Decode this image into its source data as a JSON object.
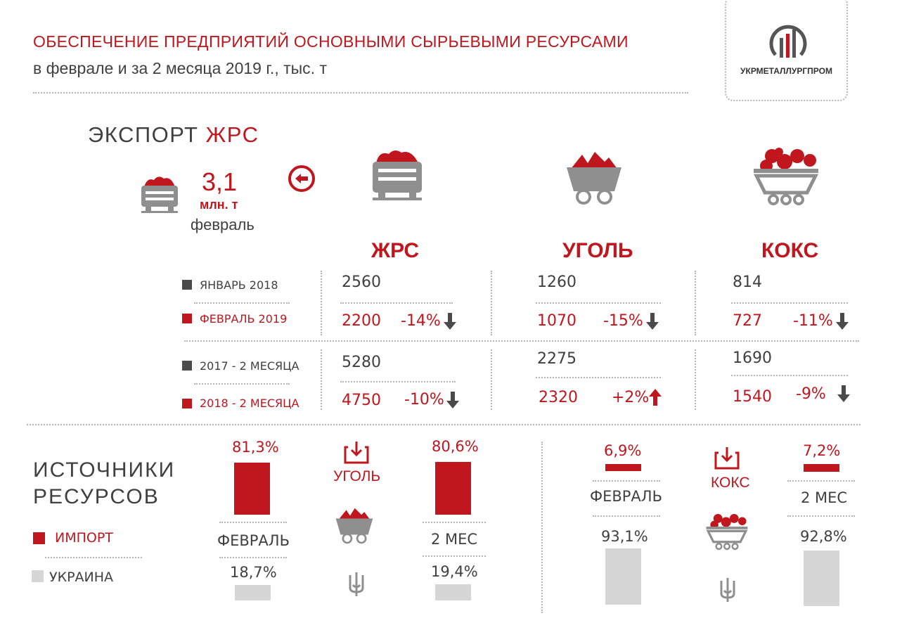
{
  "colors": {
    "red": "#c0161e",
    "dark": "#4a4a4a",
    "grey": "#d6d6d6",
    "mid_grey": "#8f8f8f"
  },
  "header": {
    "title": "ОБЕСПЕЧЕНИЕ ПРЕДПРИЯТИЙ ОСНОВНЫМИ СЫРЬЕВЫМИ РЕСУРСАМИ",
    "subtitle": "в феврале и за 2 месяца 2019 г.,  тыс. т",
    "logo_text": "УКРМЕТАЛЛУРГПРОМ"
  },
  "export": {
    "title_part1": "ЭКСПОРТ",
    "title_part2": "ЖРС",
    "value": "3,1",
    "unit": "млн. т",
    "period": "февраль"
  },
  "resources": {
    "columns": [
      "ЖРС",
      "УГОЛЬ",
      "КОКС"
    ],
    "rows": [
      "ЯНВАРЬ 2018",
      "ФЕВРАЛЬ 2019",
      "2017 - 2 МЕСЯЦА",
      "2018 - 2 МЕСЯЦА"
    ]
  },
  "chart_data": [
    {
      "type": "table",
      "columns": [
        "ЖРС",
        "УГОЛЬ",
        "КОКС"
      ],
      "rows": [
        {
          "label": "ЯНВАРЬ 2018",
          "values": [
            "2560",
            "1260",
            "814"
          ]
        },
        {
          "label": "ФЕВРАЛЬ 2019",
          "values": [
            "2200",
            "1070",
            "727"
          ],
          "changes": [
            "-14%",
            "-15%",
            "-11%"
          ]
        },
        {
          "label": "2017 - 2 МЕСЯЦА",
          "values": [
            "5280",
            "2275",
            "1690"
          ]
        },
        {
          "label": "2018 - 2 МЕСЯЦА",
          "values": [
            "4750",
            "2320",
            "1540"
          ],
          "changes": [
            "-10%",
            "+2%",
            "-9%"
          ]
        }
      ]
    },
    {
      "type": "bar",
      "title": "ИСТОЧНИКИ РЕСУРСОВ",
      "legend": [
        "ИМПОРТ",
        "УКРАИНА"
      ],
      "groups": [
        {
          "name": "УГОЛЬ",
          "periods": [
            {
              "label": "ФЕВРАЛЬ",
              "import": 81.3,
              "ukraine": 18.7,
              "import_label": "81,3%",
              "ukraine_label": "18,7%"
            },
            {
              "label": "2 МЕС",
              "import": 80.6,
              "ukraine": 19.4,
              "import_label": "80,6%",
              "ukraine_label": "19,4%"
            }
          ]
        },
        {
          "name": "КОКС",
          "periods": [
            {
              "label": "ФЕВРАЛЬ",
              "import": 6.9,
              "ukraine": 93.1,
              "import_label": "6,9%",
              "ukraine_label": "93,1%"
            },
            {
              "label": "2 МЕС",
              "import": 7.2,
              "ukraine": 92.8,
              "import_label": "7,2%",
              "ukraine_label": "92,8%"
            }
          ]
        }
      ]
    }
  ]
}
